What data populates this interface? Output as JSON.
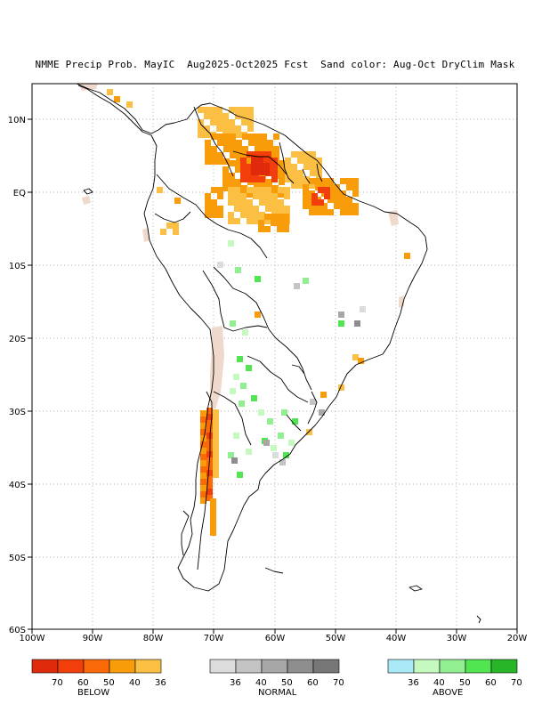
{
  "title": "NMME Precip Prob. MayIC  Aug2025-Oct2025 Fcst  Sand color: Aug-Oct DryClim Mask",
  "axes": {
    "lon_ticks": [
      "100W",
      "90W",
      "80W",
      "70W",
      "60W",
      "50W",
      "40W",
      "30W",
      "20W"
    ],
    "lat_ticks": [
      "10N",
      "EQ",
      "10S",
      "20S",
      "30S",
      "40S",
      "50S",
      "60S"
    ]
  },
  "colors": {
    "sand": "#efd9cc",
    "below": [
      "#df2a0c",
      "#f23e0a",
      "#fa6a08",
      "#f99c0a",
      "#fbbf43"
    ],
    "normal": [
      "#dcdcdc",
      "#c4c4c4",
      "#a7a7a7",
      "#8e8e8e",
      "#777777"
    ],
    "above": [
      "#a9e9f5",
      "#c6f9c0",
      "#91ee91",
      "#52e552",
      "#28b628"
    ]
  },
  "legend": {
    "below": {
      "title": "BELOW",
      "ticks": [
        "70",
        "60",
        "50",
        "40",
        "36"
      ]
    },
    "normal": {
      "title": "NORMAL",
      "ticks": [
        "36",
        "40",
        "50",
        "60",
        "70"
      ]
    },
    "above": {
      "title": "ABOVE",
      "ticks": [
        "36",
        "40",
        "50",
        "60",
        "70"
      ]
    }
  }
}
